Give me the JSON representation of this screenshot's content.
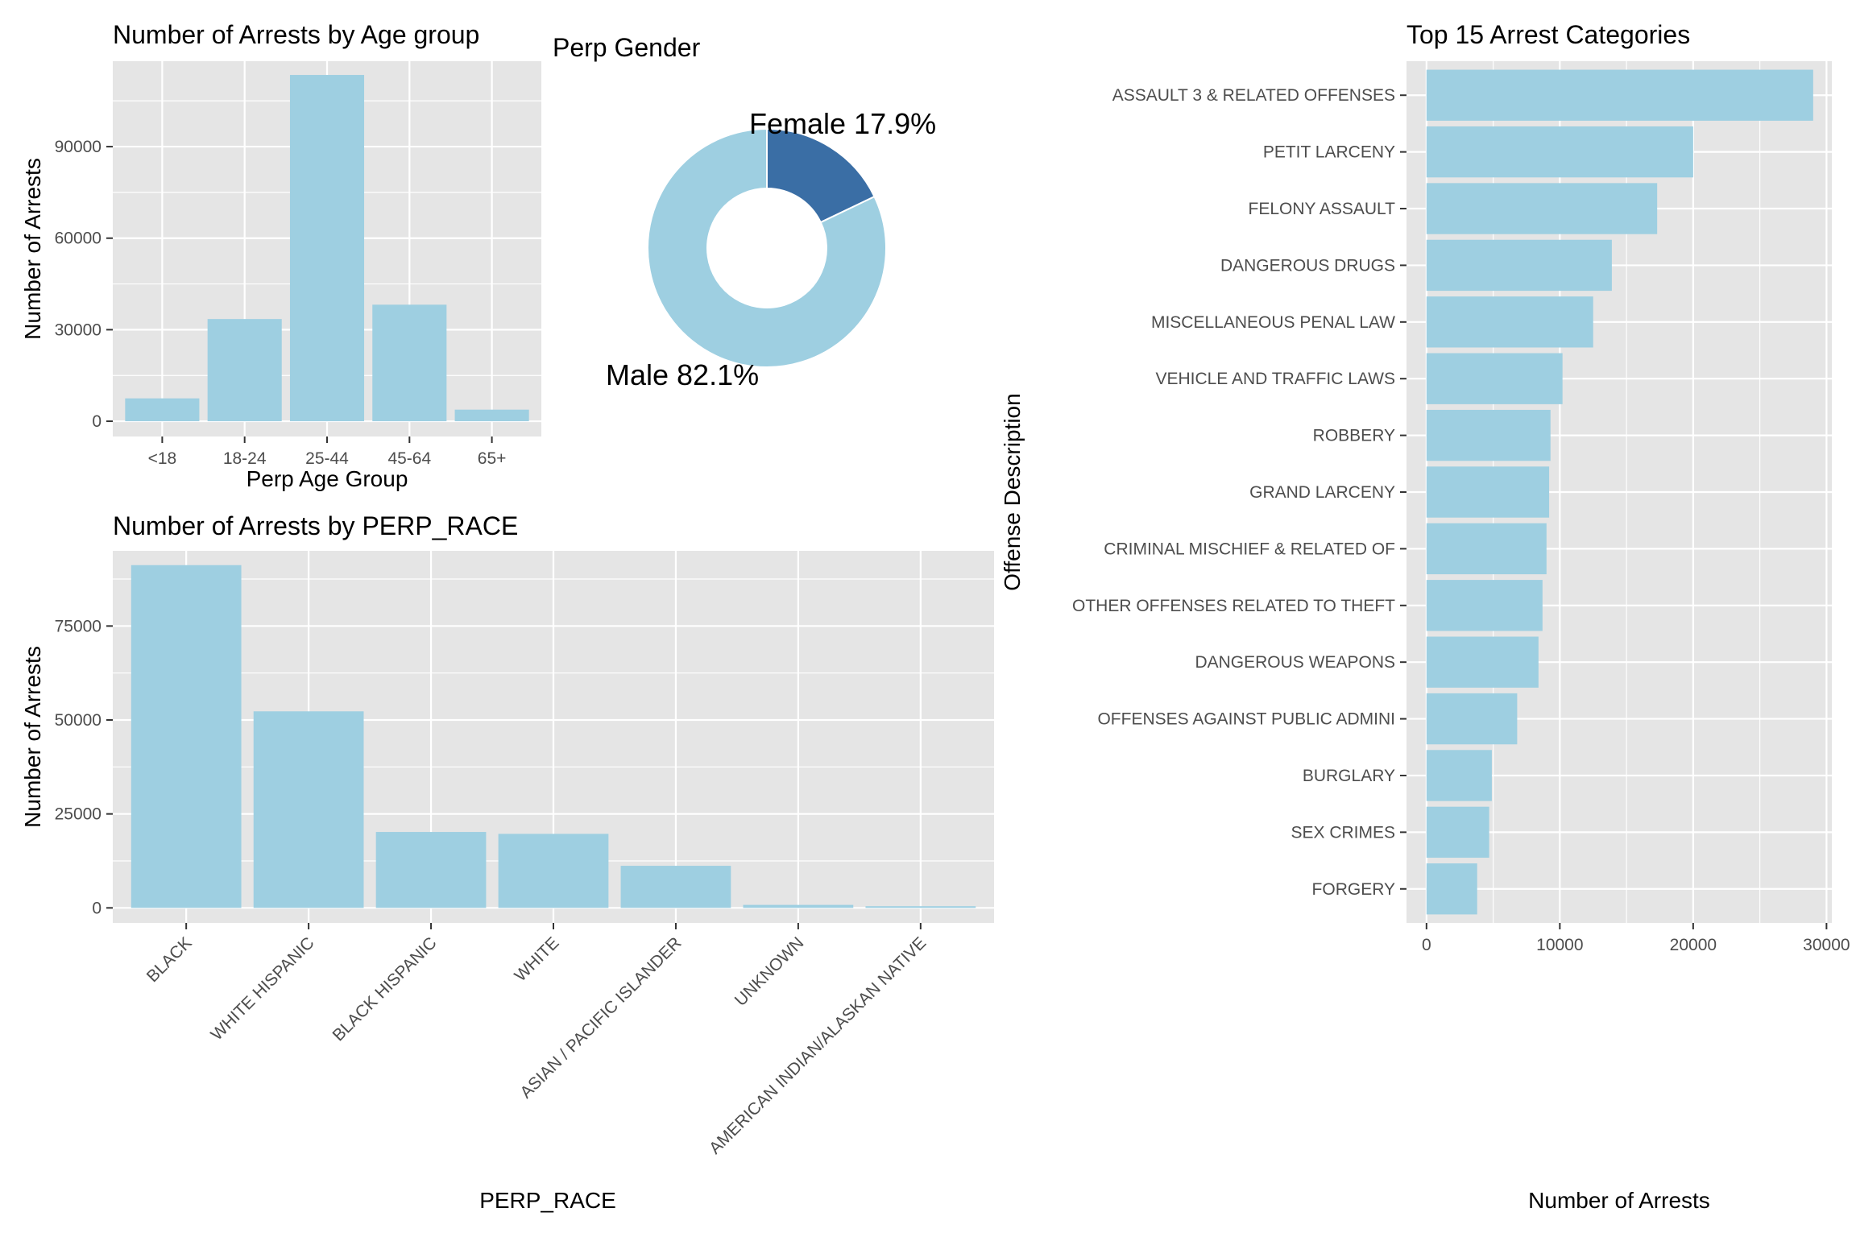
{
  "colors": {
    "panel": "#e5e5e5",
    "grid": "#ffffff",
    "bar": "#9ecfe1",
    "female": "#3a6ea5",
    "male": "#9ecfe1",
    "tick": "#4d4d4d"
  },
  "chart_data": [
    {
      "id": "age",
      "type": "bar",
      "title": "Number of Arrests by Age group",
      "xlabel": "Perp Age Group",
      "ylabel": "Number of Arrests",
      "categories": [
        "<18",
        "18-24",
        "25-44",
        "45-64",
        "65+"
      ],
      "values": [
        7500,
        33500,
        113500,
        38200,
        3800
      ],
      "ylim": [
        -5000,
        118000
      ],
      "yticks": [
        0,
        30000,
        60000,
        90000
      ],
      "ytick_labels": [
        "0",
        "30000",
        "60000",
        "90000"
      ],
      "grid": true
    },
    {
      "id": "gender",
      "type": "pie",
      "style": "donut",
      "title": "Perp Gender",
      "slices": [
        {
          "name": "Female",
          "value": 17.9,
          "label": "Female 17.9%"
        },
        {
          "name": "Male",
          "value": 82.1,
          "label": "Male 82.1%"
        }
      ]
    },
    {
      "id": "race",
      "type": "bar",
      "title": "Number of Arrests by PERP_RACE",
      "xlabel": "PERP_RACE",
      "ylabel": "Number of Arrests",
      "categories": [
        "BLACK",
        "WHITE HISPANIC",
        "BLACK HISPANIC",
        "WHITE",
        "ASIAN / PACIFIC ISLANDER",
        "UNKNOWN",
        "AMERICAN INDIAN/ALASKAN NATIVE"
      ],
      "values": [
        91200,
        52300,
        20200,
        19700,
        11200,
        800,
        450
      ],
      "ylim": [
        -4000,
        95000
      ],
      "yticks": [
        0,
        25000,
        50000,
        75000
      ],
      "ytick_labels": [
        "0",
        "25000",
        "50000",
        "75000"
      ],
      "grid": true
    },
    {
      "id": "offense",
      "type": "bar",
      "orientation": "horizontal",
      "title": "Top 15 Arrest Categories",
      "xlabel": "Number of Arrests",
      "ylabel": "Offense Description",
      "categories": [
        "ASSAULT 3 & RELATED OFFENSES",
        "PETIT LARCENY",
        "FELONY ASSAULT",
        "DANGEROUS DRUGS",
        "MISCELLANEOUS PENAL LAW",
        "VEHICLE AND TRAFFIC LAWS",
        "ROBBERY",
        "GRAND LARCENY",
        "CRIMINAL MISCHIEF & RELATED OF",
        "OTHER OFFENSES RELATED TO THEFT",
        "DANGEROUS WEAPONS",
        "OFFENSES AGAINST PUBLIC ADMINI",
        "BURGLARY",
        "SEX CRIMES",
        "FORGERY"
      ],
      "values": [
        29000,
        20000,
        17300,
        13900,
        12500,
        10200,
        9300,
        9200,
        9000,
        8700,
        8400,
        6800,
        4900,
        4700,
        3800
      ],
      "xlim": [
        -1500,
        30400
      ],
      "xticks": [
        0,
        10000,
        20000,
        30000
      ],
      "xtick_labels": [
        "0",
        "10000",
        "20000",
        "30000"
      ],
      "grid": true
    }
  ]
}
